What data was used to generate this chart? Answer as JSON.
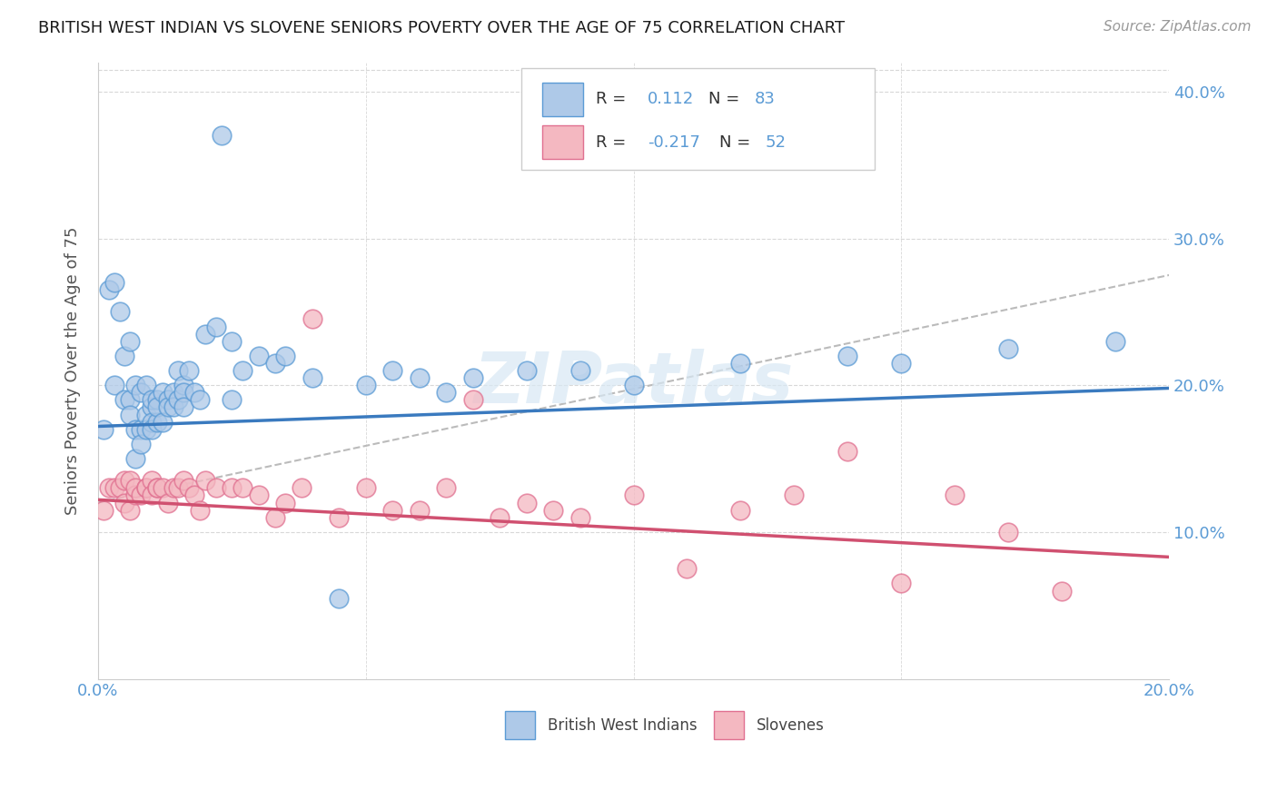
{
  "title": "BRITISH WEST INDIAN VS SLOVENE SENIORS POVERTY OVER THE AGE OF 75 CORRELATION CHART",
  "source_text": "Source: ZipAtlas.com",
  "ylabel": "Seniors Poverty Over the Age of 75",
  "xlim": [
    0.0,
    0.2
  ],
  "ylim": [
    0.0,
    0.42
  ],
  "color_blue_face": "#aec9e8",
  "color_blue_edge": "#5b9bd5",
  "color_pink_face": "#f4b8c1",
  "color_pink_edge": "#e07090",
  "color_blue_line": "#3a7abf",
  "color_pink_line": "#d05070",
  "color_gray_dashed": "#bbbbbb",
  "color_axis_labels": "#5b9bd5",
  "legend_label1": "British West Indians",
  "legend_label2": "Slovenes",
  "r1_text": "R = ",
  "r1_val": "0.112",
  "n1_text": "N = ",
  "n1_val": "83",
  "r2_text": "R = ",
  "r2_val": "-0.217",
  "n2_text": "N = ",
  "n2_val": "52",
  "blue_line_y0": 0.172,
  "blue_line_y1": 0.198,
  "pink_line_y0": 0.122,
  "pink_line_y1": 0.083,
  "gray_line_y0": 0.12,
  "gray_line_y1": 0.275,
  "bwi_x": [
    0.001,
    0.002,
    0.003,
    0.003,
    0.004,
    0.005,
    0.005,
    0.006,
    0.006,
    0.006,
    0.007,
    0.007,
    0.007,
    0.008,
    0.008,
    0.008,
    0.009,
    0.009,
    0.009,
    0.01,
    0.01,
    0.01,
    0.01,
    0.011,
    0.011,
    0.011,
    0.012,
    0.012,
    0.013,
    0.013,
    0.014,
    0.014,
    0.015,
    0.015,
    0.016,
    0.016,
    0.016,
    0.017,
    0.018,
    0.019,
    0.02,
    0.022,
    0.023,
    0.025,
    0.025,
    0.027,
    0.03,
    0.033,
    0.035,
    0.04,
    0.045,
    0.05,
    0.055,
    0.06,
    0.065,
    0.07,
    0.08,
    0.09,
    0.1,
    0.12,
    0.14,
    0.15,
    0.17,
    0.19
  ],
  "bwi_y": [
    0.17,
    0.265,
    0.27,
    0.2,
    0.25,
    0.22,
    0.19,
    0.19,
    0.23,
    0.18,
    0.17,
    0.15,
    0.2,
    0.195,
    0.17,
    0.16,
    0.18,
    0.17,
    0.2,
    0.185,
    0.175,
    0.19,
    0.17,
    0.19,
    0.175,
    0.185,
    0.195,
    0.175,
    0.19,
    0.185,
    0.195,
    0.185,
    0.19,
    0.21,
    0.2,
    0.195,
    0.185,
    0.21,
    0.195,
    0.19,
    0.235,
    0.24,
    0.37,
    0.23,
    0.19,
    0.21,
    0.22,
    0.215,
    0.22,
    0.205,
    0.055,
    0.2,
    0.21,
    0.205,
    0.195,
    0.205,
    0.21,
    0.21,
    0.2,
    0.215,
    0.22,
    0.215,
    0.225,
    0.23
  ],
  "slo_x": [
    0.001,
    0.002,
    0.003,
    0.004,
    0.005,
    0.005,
    0.006,
    0.006,
    0.007,
    0.007,
    0.008,
    0.009,
    0.009,
    0.01,
    0.01,
    0.011,
    0.011,
    0.012,
    0.013,
    0.014,
    0.015,
    0.016,
    0.017,
    0.018,
    0.019,
    0.02,
    0.022,
    0.025,
    0.027,
    0.03,
    0.033,
    0.035,
    0.038,
    0.04,
    0.045,
    0.05,
    0.055,
    0.06,
    0.065,
    0.07,
    0.075,
    0.08,
    0.085,
    0.09,
    0.1,
    0.11,
    0.12,
    0.13,
    0.14,
    0.15,
    0.16,
    0.17,
    0.18
  ],
  "slo_y": [
    0.115,
    0.13,
    0.13,
    0.13,
    0.12,
    0.135,
    0.115,
    0.135,
    0.125,
    0.13,
    0.125,
    0.13,
    0.13,
    0.135,
    0.125,
    0.13,
    0.13,
    0.13,
    0.12,
    0.13,
    0.13,
    0.135,
    0.13,
    0.125,
    0.115,
    0.135,
    0.13,
    0.13,
    0.13,
    0.125,
    0.11,
    0.12,
    0.13,
    0.245,
    0.11,
    0.13,
    0.115,
    0.115,
    0.13,
    0.19,
    0.11,
    0.12,
    0.115,
    0.11,
    0.125,
    0.075,
    0.115,
    0.125,
    0.155,
    0.065,
    0.125,
    0.1,
    0.06
  ],
  "watermark_text": "ZIPatlas",
  "watermark_color": "#d8e8f4",
  "grid_color": "#d8d8d8",
  "spine_color": "#cccccc"
}
